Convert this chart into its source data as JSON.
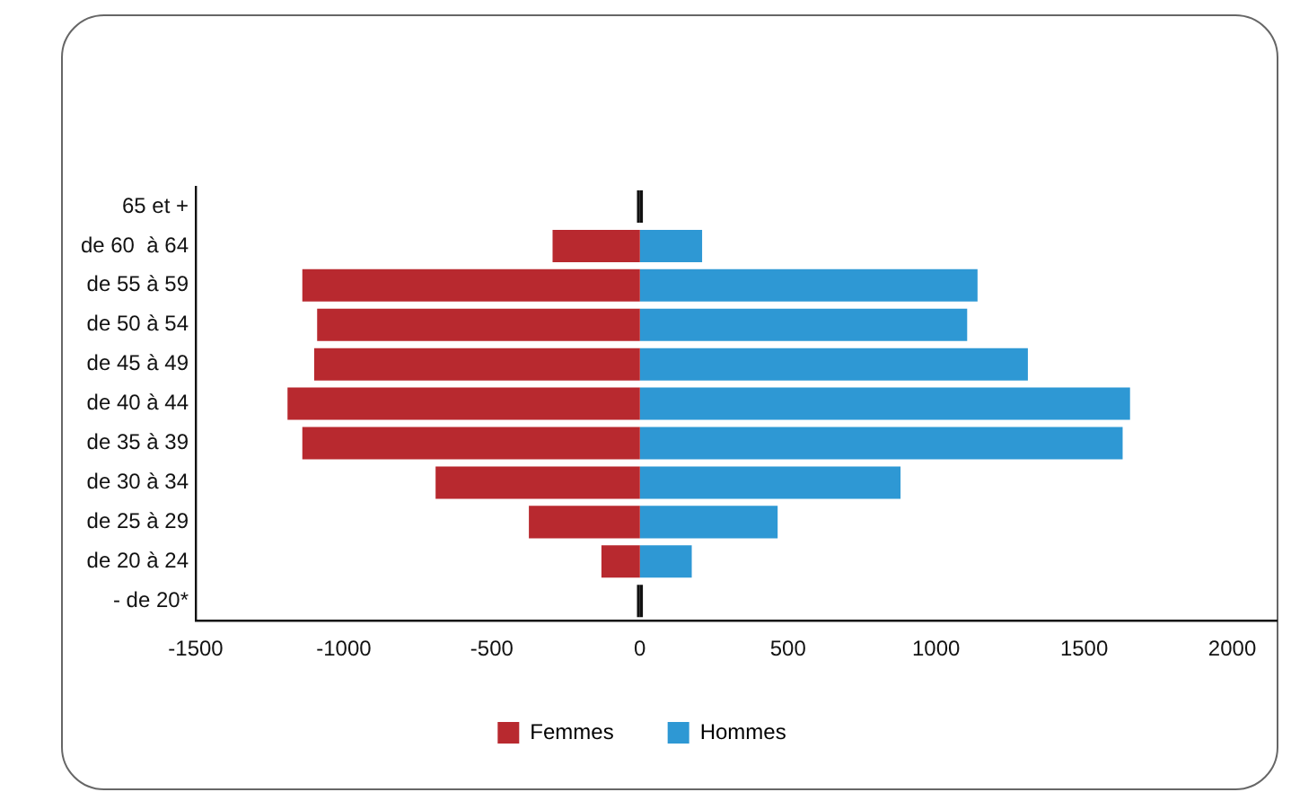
{
  "chart_data": {
    "type": "bar",
    "orientation": "horizontal",
    "stacked": true,
    "categories": [
      "65 et +",
      "de 60  à 64",
      "de 55 à 59",
      "de 50 à 54",
      "de 45 à 49",
      "de 40 à 44",
      "de 35 à 39",
      "de 30 à 34",
      "de 25 à 29",
      "de 20 à 24",
      "- de 20*"
    ],
    "series": [
      {
        "name": "Femmes",
        "color": "#b8292f",
        "colors": [
          "#111111",
          "#b8292f",
          "#b8292f",
          "#b8292f",
          "#b8292f",
          "#b8292f",
          "#b8292f",
          "#b8292f",
          "#b8292f",
          "#b8292f",
          "#111111"
        ],
        "values": [
          -10,
          -295,
          -1140,
          -1090,
          -1100,
          -1190,
          -1140,
          -690,
          -375,
          -130,
          -10
        ]
      },
      {
        "name": "Hommes",
        "color": "#2e98d4",
        "colors": [
          "#111111",
          "#2e98d4",
          "#2e98d4",
          "#2e98d4",
          "#2e98d4",
          "#2e98d4",
          "#2e98d4",
          "#2e98d4",
          "#2e98d4",
          "#2e98d4",
          "#111111"
        ],
        "values": [
          10,
          210,
          1140,
          1105,
          1310,
          1655,
          1630,
          880,
          465,
          175,
          10
        ]
      }
    ],
    "xlim": [
      -1500,
      2150
    ],
    "xticks": [
      -1500,
      -1000,
      -500,
      0,
      500,
      1000,
      1500,
      2000
    ],
    "grid": false,
    "legend": "bottom"
  }
}
